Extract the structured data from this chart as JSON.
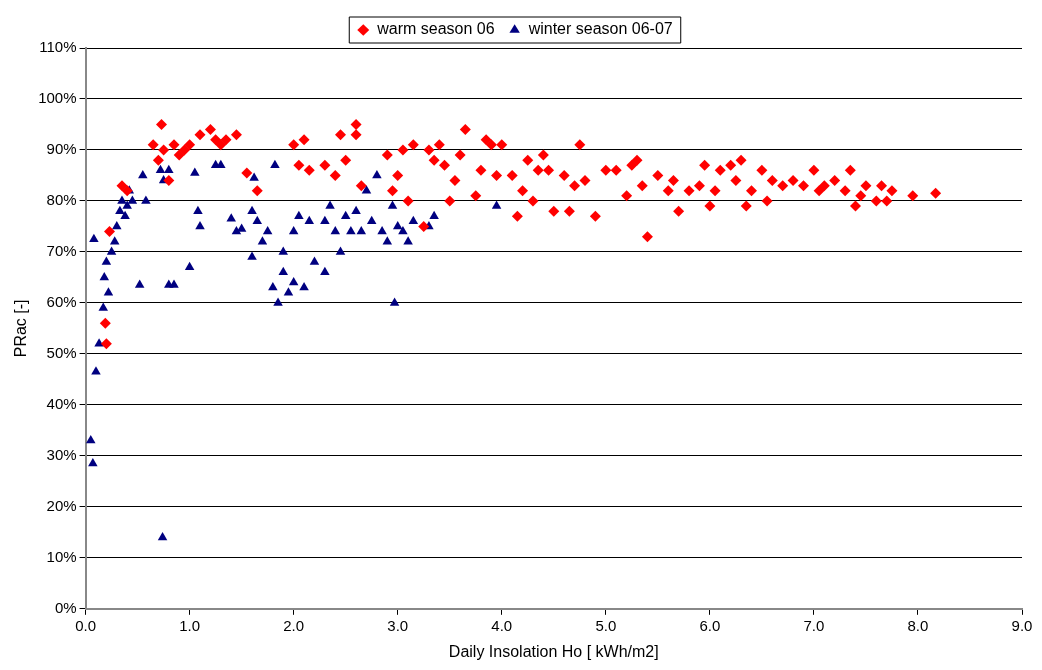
{
  "chart_data": {
    "type": "scatter",
    "xlabel": "Daily Insolation Ho [ kWh/m2]",
    "ylabel": "PRac [-]",
    "legend": "top",
    "grid": "y",
    "xlim": [
      0,
      9
    ],
    "xticks": [
      {
        "value": 0,
        "label": "0.0"
      },
      {
        "value": 1,
        "label": "1.0"
      },
      {
        "value": 2,
        "label": "2.0"
      },
      {
        "value": 3,
        "label": "3.0"
      },
      {
        "value": 4,
        "label": "4.0"
      },
      {
        "value": 5,
        "label": "5.0"
      },
      {
        "value": 6,
        "label": "6.0"
      },
      {
        "value": 7,
        "label": "7.0"
      },
      {
        "value": 8,
        "label": "8.0"
      },
      {
        "value": 9,
        "label": "9.0"
      }
    ],
    "ylim": [
      0,
      110
    ],
    "yticks": [
      {
        "value": 0,
        "label": "0%"
      },
      {
        "value": 10,
        "label": "10%"
      },
      {
        "value": 20,
        "label": "20%"
      },
      {
        "value": 30,
        "label": "30%"
      },
      {
        "value": 40,
        "label": "40%"
      },
      {
        "value": 50,
        "label": "50%"
      },
      {
        "value": 60,
        "label": "60%"
      },
      {
        "value": 70,
        "label": "70%"
      },
      {
        "value": 80,
        "label": "80%"
      },
      {
        "value": 90,
        "label": "90%"
      },
      {
        "value": 100,
        "label": "100%"
      },
      {
        "value": 110,
        "label": "110%"
      }
    ],
    "series": [
      {
        "name": "warm season 06",
        "color": "#ff0000",
        "marker": "diamond",
        "x": [
          0.2,
          0.19,
          0.23,
          0.35,
          0.4,
          0.65,
          0.7,
          0.73,
          0.75,
          0.8,
          0.85,
          0.9,
          0.95,
          1.0,
          1.1,
          1.2,
          1.25,
          1.3,
          1.35,
          1.45,
          1.55,
          1.65,
          2.0,
          2.1,
          2.05,
          2.15,
          2.3,
          2.4,
          2.45,
          2.5,
          2.6,
          2.6,
          2.65,
          2.9,
          2.95,
          3.0,
          3.05,
          3.1,
          3.15,
          3.25,
          3.3,
          3.35,
          3.4,
          3.45,
          3.5,
          3.55,
          3.6,
          3.65,
          3.75,
          3.8,
          3.85,
          3.9,
          3.95,
          4.0,
          4.1,
          4.15,
          4.2,
          4.25,
          4.3,
          4.35,
          4.4,
          4.45,
          4.5,
          4.6,
          4.65,
          4.7,
          4.75,
          4.8,
          4.9,
          5.0,
          5.1,
          5.2,
          5.25,
          5.3,
          5.35,
          5.4,
          5.5,
          5.6,
          5.65,
          5.7,
          5.8,
          5.9,
          5.95,
          6.0,
          6.05,
          6.1,
          6.2,
          6.25,
          6.3,
          6.35,
          6.4,
          6.5,
          6.55,
          6.6,
          6.7,
          6.8,
          6.9,
          7.0,
          7.05,
          7.1,
          7.2,
          7.3,
          7.35,
          7.4,
          7.45,
          7.5,
          7.6,
          7.65,
          7.7,
          7.75,
          7.95,
          8.17
        ],
        "values": [
          52,
          56,
          74,
          83,
          82,
          91,
          88,
          95,
          90,
          84,
          91,
          89,
          90,
          91,
          93,
          94,
          92,
          91,
          92,
          93,
          85.5,
          82,
          91,
          92,
          87,
          86,
          87,
          85,
          93,
          88,
          93,
          95,
          83,
          89,
          82,
          85,
          90,
          80,
          91,
          75,
          90,
          88,
          91,
          87,
          80,
          84,
          89,
          94,
          81,
          86,
          92,
          91,
          85,
          91,
          85,
          77,
          82,
          88,
          80,
          86,
          89,
          86,
          78,
          85,
          78,
          83,
          91,
          84,
          77,
          86,
          86,
          81,
          87,
          88,
          83,
          73,
          85,
          82,
          84,
          78,
          82,
          83,
          87,
          79,
          82,
          86,
          87,
          84,
          88,
          79,
          82,
          86,
          80,
          84,
          83,
          84,
          83,
          86,
          82,
          83,
          84,
          82,
          86,
          79,
          81,
          83,
          80,
          83,
          80,
          82,
          81,
          81.5
        ]
      },
      {
        "name": "winter season 06-07",
        "color": "#000080",
        "marker": "triangle",
        "x": [
          0.05,
          0.07,
          0.08,
          0.1,
          0.13,
          0.17,
          0.18,
          0.2,
          0.22,
          0.25,
          0.28,
          0.3,
          0.33,
          0.35,
          0.38,
          0.4,
          0.42,
          0.45,
          0.52,
          0.55,
          0.58,
          0.72,
          0.74,
          0.8,
          0.85,
          0.8,
          0.75,
          1.0,
          1.05,
          1.08,
          1.1,
          1.25,
          1.3,
          1.4,
          1.45,
          1.5,
          1.62,
          1.6,
          1.65,
          1.6,
          1.7,
          1.75,
          1.8,
          1.82,
          1.85,
          1.9,
          1.9,
          1.95,
          2.0,
          2.0,
          2.05,
          2.1,
          2.15,
          2.2,
          2.3,
          2.3,
          2.35,
          2.4,
          2.45,
          2.5,
          2.55,
          2.6,
          2.65,
          2.7,
          2.75,
          2.8,
          2.85,
          2.9,
          2.95,
          2.97,
          3.0,
          3.05,
          3.1,
          3.15,
          3.3,
          3.35,
          3.95
        ],
        "values": [
          33,
          28.5,
          72.5,
          46.5,
          52,
          59,
          65,
          68,
          62,
          70,
          72,
          75,
          78,
          80,
          77,
          79,
          82,
          80,
          63.5,
          85,
          80,
          86,
          14,
          63.5,
          63.5,
          86,
          84,
          67,
          85.5,
          78,
          75,
          87,
          87,
          76.5,
          74,
          74.5,
          84.5,
          78,
          76,
          69,
          72,
          74,
          63,
          87,
          60,
          70,
          66,
          62,
          64,
          74,
          77,
          63,
          76,
          68,
          66,
          76,
          79,
          74,
          70,
          77,
          74,
          78,
          74,
          82,
          76,
          85,
          74,
          72,
          79,
          60,
          75,
          74,
          72,
          76,
          75,
          77,
          79
        ]
      }
    ]
  }
}
